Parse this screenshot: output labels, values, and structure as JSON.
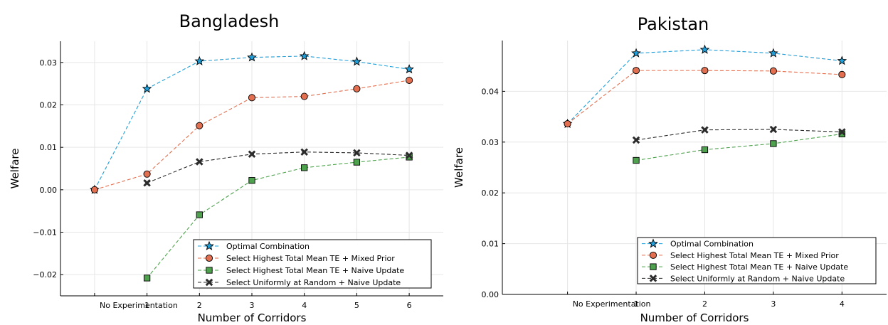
{
  "chart_data": [
    {
      "type": "line",
      "title": "Bangladesh",
      "xlabel": "Number of Corridors",
      "ylabel": "Welfare",
      "categories": [
        "No Experimentation",
        "1",
        "2",
        "3",
        "4",
        "5",
        "6"
      ],
      "ylim": [
        -0.025,
        0.035
      ],
      "yticks": [
        -0.02,
        -0.01,
        0.0,
        0.01,
        0.02,
        0.03
      ],
      "ytick_labels": [
        "−0.02",
        "−0.01",
        "0.00",
        "0.01",
        "0.02",
        "0.03"
      ],
      "grid": true,
      "legend": "bottom-right",
      "series": [
        {
          "name": "Optimal Combination",
          "marker": "star",
          "color": "#1f9fd9",
          "x": [
            0,
            1,
            2,
            3,
            4,
            5,
            6
          ],
          "values": [
            0.0,
            0.0238,
            0.0303,
            0.0312,
            0.0315,
            0.0302,
            0.0284
          ]
        },
        {
          "name": "Select Highest Total Mean TE + Mixed Prior",
          "marker": "circle",
          "color": "#e26f4f",
          "x": [
            0,
            1,
            2,
            3,
            4,
            5,
            6
          ],
          "values": [
            0.0,
            0.0037,
            0.0151,
            0.0217,
            0.022,
            0.0238,
            0.0258
          ]
        },
        {
          "name": "Select Highest Total Mean TE + Naive Update",
          "marker": "square",
          "color": "#4ea24e",
          "x": [
            1,
            2,
            3,
            4,
            5,
            6
          ],
          "values": [
            -0.0208,
            -0.0059,
            0.0022,
            0.0052,
            0.0065,
            0.0077
          ]
        },
        {
          "name": "Select Uniformly at Random + Naive Update",
          "marker": "x",
          "color": "#2b2b2b",
          "x": [
            1,
            2,
            3,
            4,
            5,
            6
          ],
          "values": [
            0.0016,
            0.0066,
            0.0084,
            0.0089,
            0.0087,
            0.0081
          ]
        }
      ]
    },
    {
      "type": "line",
      "title": "Pakistan",
      "xlabel": "Number of Corridors",
      "ylabel": "Welfare",
      "categories": [
        "No Experimentation",
        "1",
        "2",
        "3",
        "4"
      ],
      "ylim": [
        0.0,
        0.05
      ],
      "yticks": [
        0.0,
        0.01,
        0.02,
        0.03,
        0.04
      ],
      "ytick_labels": [
        "0.00",
        "0.01",
        "0.02",
        "0.03",
        "0.04"
      ],
      "grid": true,
      "legend": "bottom-right",
      "series": [
        {
          "name": "Optimal Combination",
          "marker": "star",
          "color": "#1f9fd9",
          "x": [
            0,
            1,
            2,
            3,
            4
          ],
          "values": [
            0.0336,
            0.0475,
            0.0482,
            0.0475,
            0.046
          ]
        },
        {
          "name": "Select Highest Total Mean TE + Mixed Prior",
          "marker": "circle",
          "color": "#e26f4f",
          "x": [
            0,
            1,
            2,
            3,
            4
          ],
          "values": [
            0.0336,
            0.0441,
            0.0441,
            0.044,
            0.0433
          ]
        },
        {
          "name": "Select Highest Total Mean TE + Naive Update",
          "marker": "square",
          "color": "#4ea24e",
          "x": [
            1,
            2,
            3,
            4
          ],
          "values": [
            0.0264,
            0.0285,
            0.0297,
            0.0316
          ]
        },
        {
          "name": "Select Uniformly at Random + Naive Update",
          "marker": "x",
          "color": "#2b2b2b",
          "x": [
            1,
            2,
            3,
            4
          ],
          "values": [
            0.0304,
            0.0324,
            0.0325,
            0.032
          ]
        }
      ]
    }
  ]
}
